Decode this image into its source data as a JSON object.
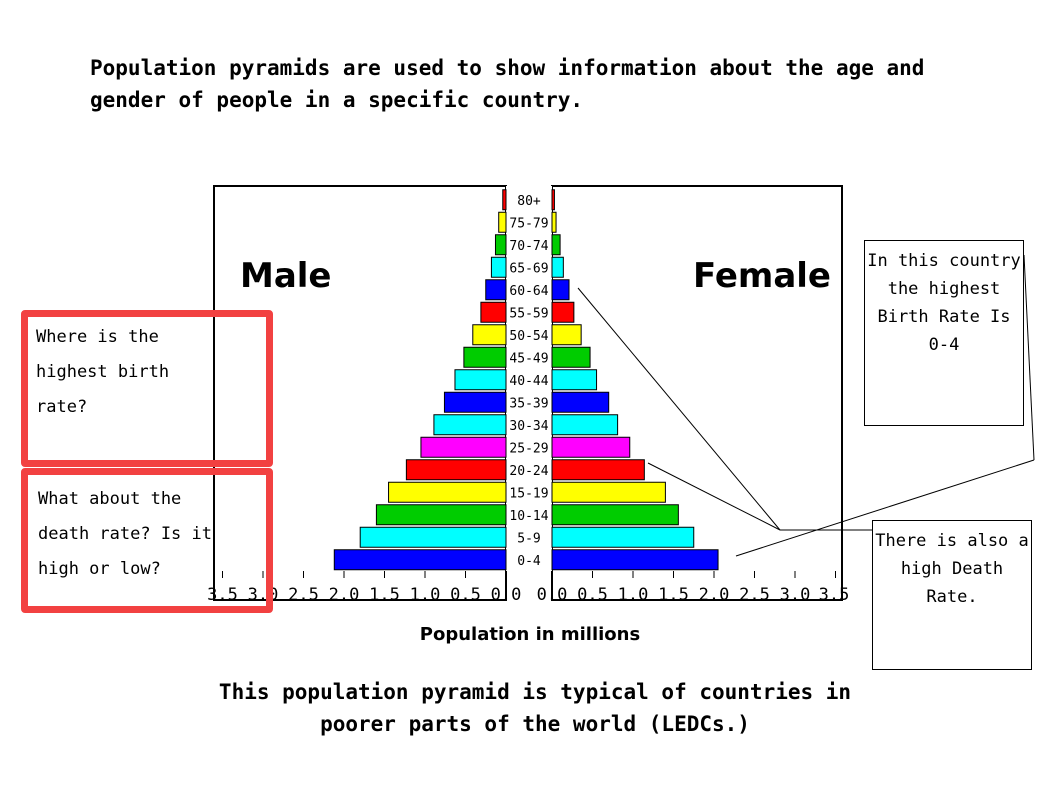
{
  "intro_text": "Population pyramids are used to show information about the age and gender of people in a specific country.",
  "conclusion_text": "This population pyramid is typical of countries in poorer parts of the world (LEDCs.)",
  "questions": {
    "birth_rate": "Where is the highest birth rate?",
    "death_rate": "What about the death rate? Is it high or low?"
  },
  "notes": {
    "birth_rate": "In this country the highest Birth Rate Is 0-4",
    "death_rate": "There is also a high Death Rate."
  },
  "colors": {
    "question_border": "#f24141",
    "bar_cycle": [
      "#0000ff",
      "#00ffff",
      "#00cc00",
      "#ffff00",
      "#ff0000",
      "#ff00ff",
      "#00ffff",
      "#0000ff",
      "#00ffff",
      "#00cc00",
      "#ffff00",
      "#ff0000",
      "#0000ff",
      "#00ffff",
      "#00cc00",
      "#ffff00",
      "#ff0000"
    ]
  },
  "chart_data": {
    "type": "bar",
    "orientation": "horizontal-pyramid",
    "left_label": "Male",
    "right_label": "Female",
    "xlabel": "Population in millions",
    "x_ticks_left": [
      "3.5",
      "3.0",
      "2.5",
      "2.0",
      "1.5",
      "1.0",
      "0.5",
      "0.0"
    ],
    "x_ticks_right": [
      "0.0",
      "0.5",
      "1.0",
      "1.5",
      "2.0",
      "2.5",
      "3.0",
      "3.5"
    ],
    "xlim": [
      0,
      3.5
    ],
    "categories": [
      "0-4",
      "5-9",
      "10-14",
      "15-19",
      "20-24",
      "25-29",
      "30-34",
      "35-39",
      "40-44",
      "45-49",
      "50-54",
      "55-59",
      "60-64",
      "65-69",
      "70-74",
      "75-79",
      "80+"
    ],
    "series": [
      {
        "name": "Male",
        "values": [
          2.12,
          1.8,
          1.6,
          1.45,
          1.23,
          1.05,
          0.89,
          0.76,
          0.63,
          0.52,
          0.41,
          0.31,
          0.25,
          0.18,
          0.13,
          0.09,
          0.04
        ]
      },
      {
        "name": "Female",
        "values": [
          2.05,
          1.75,
          1.56,
          1.4,
          1.14,
          0.96,
          0.81,
          0.7,
          0.55,
          0.47,
          0.36,
          0.27,
          0.21,
          0.14,
          0.1,
          0.05,
          0.03
        ]
      }
    ]
  }
}
